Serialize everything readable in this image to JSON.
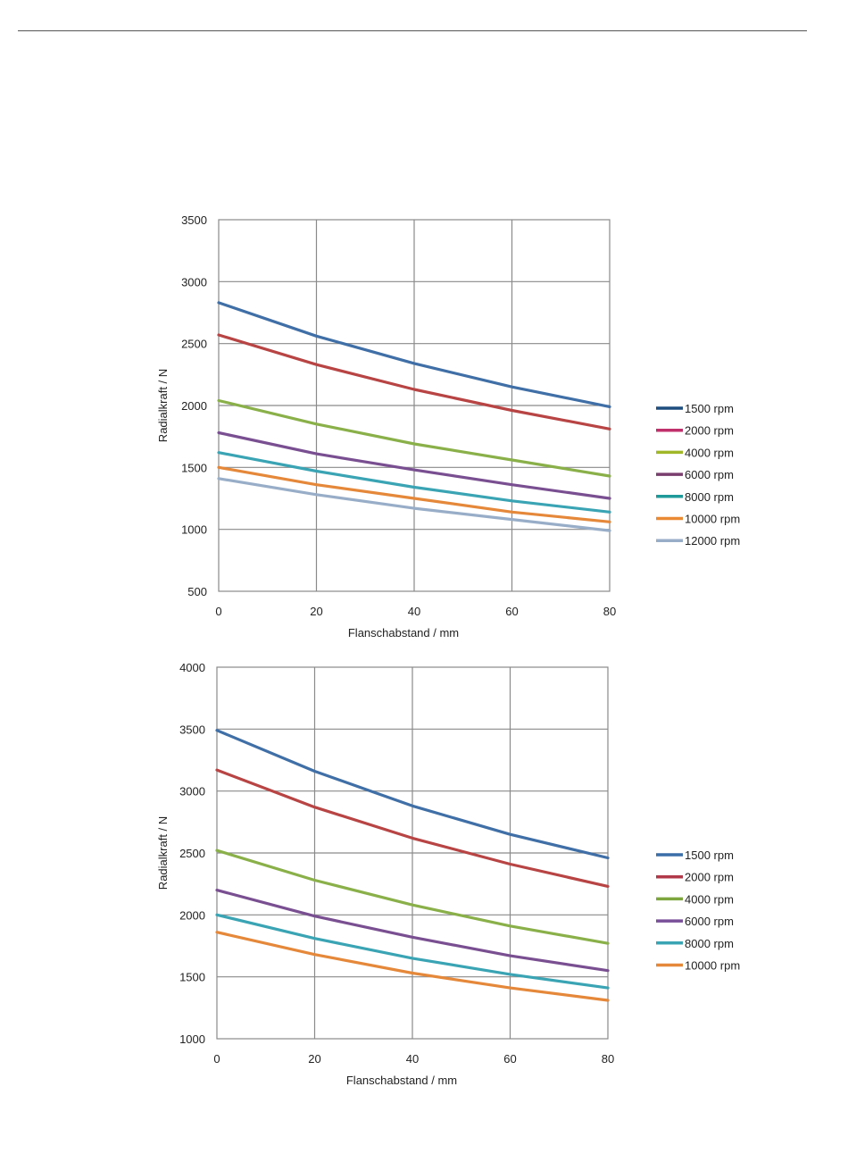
{
  "chart_data": [
    {
      "type": "line",
      "xlabel": "Flanschabstand / mm",
      "ylabel": "Radialkraft / N",
      "xlim": [
        0,
        80
      ],
      "ylim": [
        500,
        3500
      ],
      "xticks": [
        0,
        20,
        40,
        60,
        80
      ],
      "yticks": [
        500,
        1000,
        1500,
        2000,
        2500,
        3000,
        3500
      ],
      "grid": true,
      "legend_position": "right",
      "x": [
        0,
        20,
        40,
        60,
        80
      ],
      "series": [
        {
          "name": "1500 rpm",
          "color": "#3f6fa6",
          "legend_color": "#1e4d80",
          "values": [
            2830,
            2560,
            2340,
            2150,
            1990
          ]
        },
        {
          "name": "2000 rpm",
          "color": "#b84444",
          "legend_color": "#c0306a",
          "values": [
            2570,
            2330,
            2130,
            1960,
            1810
          ]
        },
        {
          "name": "4000 rpm",
          "color": "#8ab04a",
          "legend_color": "#a0b828",
          "values": [
            2040,
            1850,
            1690,
            1560,
            1430
          ]
        },
        {
          "name": "6000 rpm",
          "color": "#7a4f92",
          "legend_color": "#7a3e6e",
          "values": [
            1780,
            1610,
            1480,
            1360,
            1250
          ]
        },
        {
          "name": "8000 rpm",
          "color": "#3aa4b4",
          "legend_color": "#1e9a9a",
          "values": [
            1620,
            1470,
            1340,
            1230,
            1140
          ]
        },
        {
          "name": "10000 rpm",
          "color": "#e5883a",
          "legend_color": "#ea8a34",
          "values": [
            1500,
            1360,
            1250,
            1140,
            1060
          ]
        },
        {
          "name": "12000 rpm",
          "color": "#98aec8",
          "legend_color": "#98aec8",
          "values": [
            1410,
            1280,
            1170,
            1080,
            990
          ]
        }
      ]
    },
    {
      "type": "line",
      "xlabel": "Flanschabstand / mm",
      "ylabel": "Radialkraft / N",
      "xlim": [
        0,
        80
      ],
      "ylim": [
        1000,
        4000
      ],
      "xticks": [
        0,
        20,
        40,
        60,
        80
      ],
      "yticks": [
        1000,
        1500,
        2000,
        2500,
        3000,
        3500,
        4000
      ],
      "grid": true,
      "legend_position": "right",
      "x": [
        0,
        20,
        40,
        60,
        80
      ],
      "series": [
        {
          "name": "1500 rpm",
          "color": "#3f6fa6",
          "legend_color": "#3a6ea8",
          "values": [
            3490,
            3160,
            2880,
            2650,
            2460
          ]
        },
        {
          "name": "2000 rpm",
          "color": "#b84444",
          "legend_color": "#b03848",
          "values": [
            3170,
            2870,
            2620,
            2410,
            2230
          ]
        },
        {
          "name": "4000 rpm",
          "color": "#8ab04a",
          "legend_color": "#7ea63e",
          "values": [
            2520,
            2280,
            2080,
            1910,
            1770
          ]
        },
        {
          "name": "6000 rpm",
          "color": "#7a4f92",
          "legend_color": "#7a4f9a",
          "values": [
            2200,
            1990,
            1820,
            1670,
            1550
          ]
        },
        {
          "name": "8000 rpm",
          "color": "#3aa4b4",
          "legend_color": "#3aa4b4",
          "values": [
            2000,
            1810,
            1650,
            1520,
            1410
          ]
        },
        {
          "name": "10000 rpm",
          "color": "#e5883a",
          "legend_color": "#e5883a",
          "values": [
            1860,
            1680,
            1530,
            1410,
            1310
          ]
        }
      ]
    }
  ]
}
